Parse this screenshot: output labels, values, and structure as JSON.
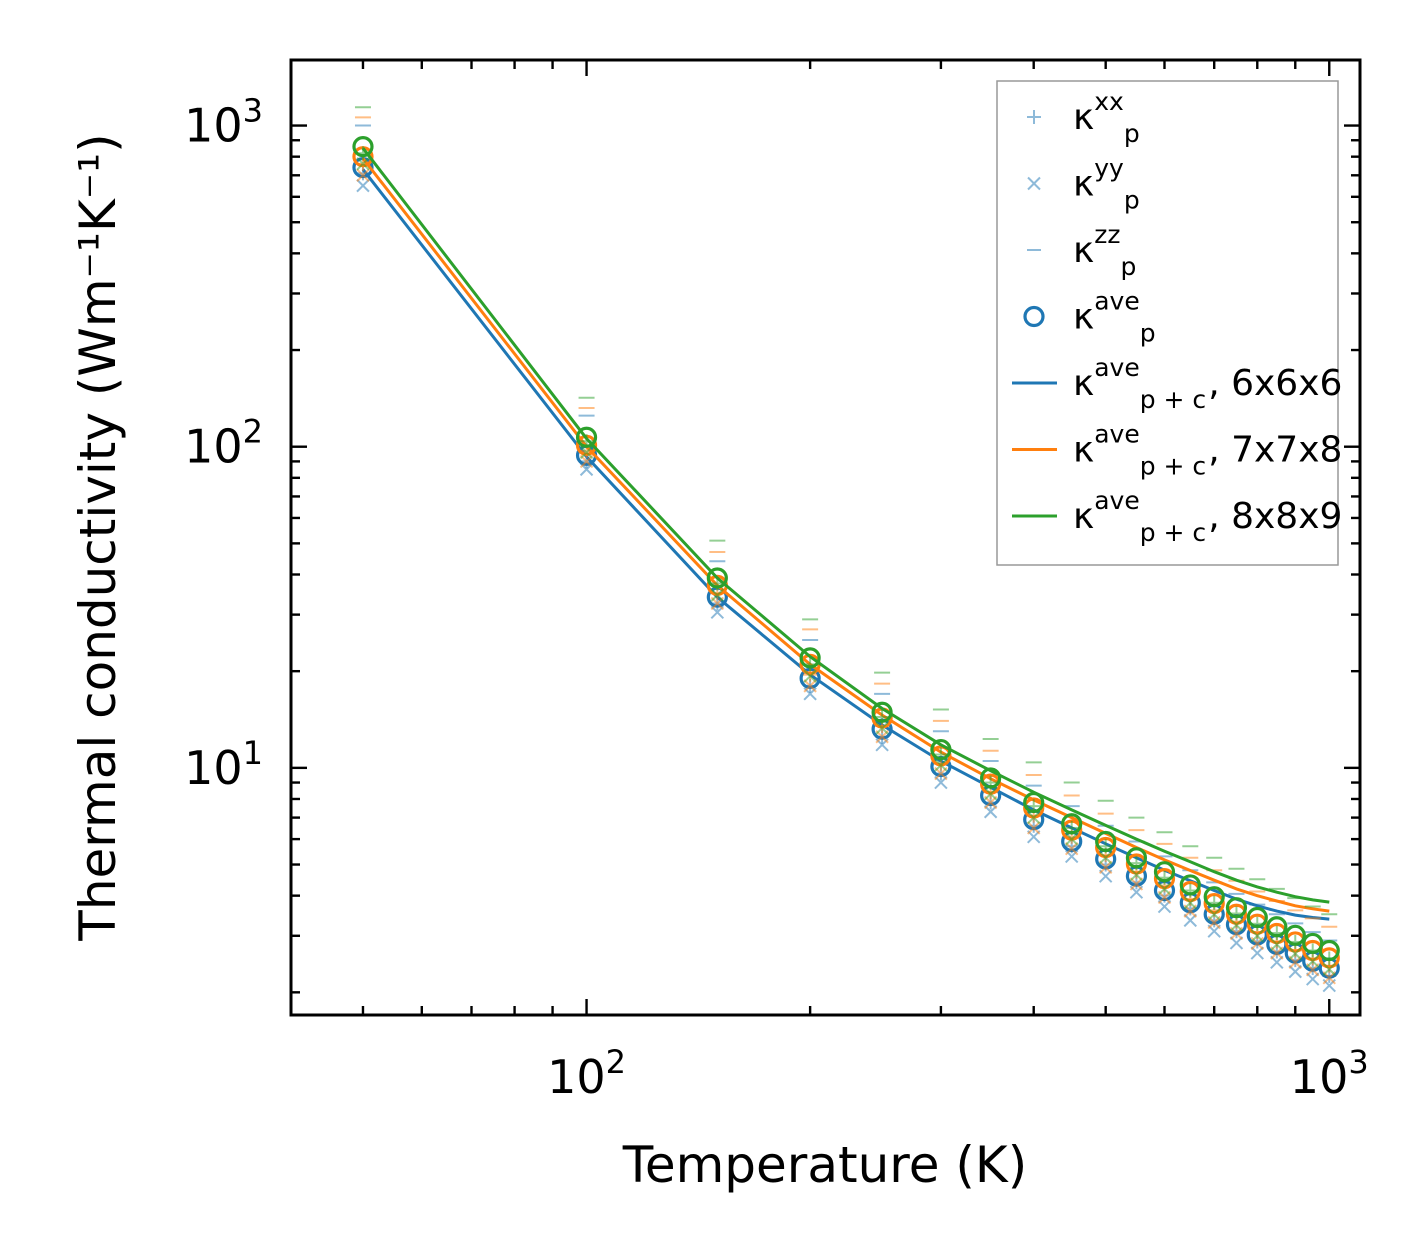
{
  "chart_data": {
    "type": "scatter",
    "title": "",
    "xlabel": "Temperature (K)",
    "ylabel": "Thermal conductivity (Wm⁻¹K⁻¹)",
    "xscale": "log",
    "yscale": "log",
    "xlim": [
      40,
      1100
    ],
    "ylim": [
      1.7,
      1600
    ],
    "x_ticks": [
      {
        "value": 100,
        "label": "10",
        "exp": "2"
      },
      {
        "value": 1000,
        "label": "10",
        "exp": "3"
      }
    ],
    "y_ticks": [
      {
        "value": 10,
        "label": "10",
        "exp": "1"
      },
      {
        "value": 100,
        "label": "10",
        "exp": "2"
      },
      {
        "value": 1000,
        "label": "10",
        "exp": "3"
      }
    ],
    "grid": false,
    "legend_position": "top-right",
    "x": [
      50,
      100,
      150,
      200,
      250,
      300,
      350,
      400,
      450,
      500,
      550,
      600,
      650,
      700,
      750,
      800,
      850,
      900,
      950,
      1000
    ],
    "colors": {
      "6x6x6": "#1f77b4",
      "7x7x8": "#ff7f0e",
      "8x8x9": "#2ca02c"
    },
    "legend": [
      {
        "base": "κ",
        "sub": "p",
        "sup": "xx",
        "tail": "",
        "marker": "plus"
      },
      {
        "base": "κ",
        "sub": "p",
        "sup": "yy",
        "tail": "",
        "marker": "x"
      },
      {
        "base": "κ",
        "sub": "p",
        "sup": "zz",
        "tail": "",
        "marker": "hline"
      },
      {
        "base": "κ",
        "sub": "p",
        "sup": "ave",
        "tail": "",
        "marker": "circle"
      },
      {
        "base": "κ",
        "sub": "p + c",
        "sup": "ave",
        "tail": ", 6x6x6",
        "marker": "line",
        "color": "#1f77b4"
      },
      {
        "base": "κ",
        "sub": "p + c",
        "sup": "ave",
        "tail": ", 7x7x8",
        "marker": "line",
        "color": "#ff7f0e"
      },
      {
        "base": "κ",
        "sub": "p + c",
        "sup": "ave",
        "tail": ", 8x8x9",
        "marker": "line",
        "color": "#2ca02c"
      }
    ],
    "series": [
      {
        "name": "6x6x6",
        "color": "#1f77b4",
        "kappa_p_xx": [
          710,
          90,
          32.5,
          18,
          12.5,
          9.6,
          7.8,
          6.6,
          5.7,
          5.0,
          4.4,
          4.0,
          3.65,
          3.35,
          3.1,
          2.88,
          2.68,
          2.52,
          2.38,
          2.25
        ],
        "kappa_p_yy": [
          650,
          85,
          30.5,
          17,
          11.8,
          9.0,
          7.3,
          6.1,
          5.3,
          4.6,
          4.1,
          3.7,
          3.35,
          3.1,
          2.85,
          2.65,
          2.48,
          2.32,
          2.2,
          2.1
        ],
        "kappa_p_zz": [
          1000,
          125,
          44,
          25,
          17,
          13,
          10.5,
          8.8,
          7.6,
          6.6,
          5.9,
          5.3,
          4.8,
          4.4,
          4.05,
          3.75,
          3.5,
          3.28,
          3.08,
          2.9
        ],
        "kappa_p_ave": [
          740,
          94,
          34,
          19,
          13.2,
          10.1,
          8.2,
          6.9,
          5.9,
          5.2,
          4.6,
          4.15,
          3.8,
          3.5,
          3.25,
          3.02,
          2.82,
          2.65,
          2.5,
          2.38
        ],
        "kappa_pc_ave": [
          730,
          93,
          34,
          19.5,
          13.6,
          10.5,
          8.7,
          7.4,
          6.5,
          5.8,
          5.25,
          4.8,
          4.45,
          4.15,
          3.9,
          3.72,
          3.58,
          3.48,
          3.42,
          3.38
        ]
      },
      {
        "name": "7x7x8",
        "color": "#ff7f0e",
        "kappa_p_xx": [
          760,
          97,
          35,
          19.5,
          13.5,
          10.3,
          8.4,
          7.1,
          6.1,
          5.35,
          4.75,
          4.3,
          3.9,
          3.6,
          3.32,
          3.08,
          2.88,
          2.7,
          2.55,
          2.42
        ],
        "kappa_p_yy": [
          700,
          90,
          32.5,
          18,
          12.5,
          9.6,
          7.8,
          6.5,
          5.6,
          4.9,
          4.35,
          3.95,
          3.58,
          3.3,
          3.05,
          2.84,
          2.65,
          2.48,
          2.35,
          2.22
        ],
        "kappa_p_zz": [
          1060,
          132,
          47,
          27,
          18.3,
          14,
          11.3,
          9.5,
          8.2,
          7.2,
          6.4,
          5.8,
          5.25,
          4.8,
          4.45,
          4.12,
          3.85,
          3.6,
          3.4,
          3.2
        ],
        "kappa_p_ave": [
          800,
          101,
          37,
          21,
          14.3,
          10.9,
          8.9,
          7.5,
          6.4,
          5.65,
          5.02,
          4.52,
          4.12,
          3.78,
          3.5,
          3.26,
          3.05,
          2.87,
          2.7,
          2.56
        ],
        "kappa_pc_ave": [
          790,
          100,
          37,
          21,
          14.6,
          11.2,
          9.25,
          7.95,
          7.0,
          6.25,
          5.65,
          5.17,
          4.79,
          4.47,
          4.2,
          4.0,
          3.85,
          3.72,
          3.64,
          3.58
        ]
      },
      {
        "name": "8x8x9",
        "color": "#2ca02c",
        "kappa_p_xx": [
          820,
          104,
          37.5,
          21,
          14.4,
          11,
          9,
          7.6,
          6.5,
          5.7,
          5.05,
          4.55,
          4.15,
          3.8,
          3.52,
          3.27,
          3.06,
          2.87,
          2.7,
          2.55
        ],
        "kappa_p_yy": [
          760,
          96,
          34.5,
          19.3,
          13.3,
          10.2,
          8.3,
          7.0,
          6.0,
          5.25,
          4.65,
          4.2,
          3.8,
          3.5,
          3.24,
          3.0,
          2.82,
          2.64,
          2.5,
          2.36
        ],
        "kappa_p_zz": [
          1140,
          142,
          51,
          29,
          19.8,
          15.2,
          12.3,
          10.4,
          9.0,
          7.9,
          7.0,
          6.3,
          5.7,
          5.25,
          4.85,
          4.5,
          4.2,
          3.93,
          3.7,
          3.5
        ],
        "kappa_p_ave": [
          860,
          107,
          39,
          22,
          14.9,
          11.4,
          9.3,
          7.8,
          6.7,
          5.9,
          5.25,
          4.75,
          4.32,
          3.97,
          3.67,
          3.42,
          3.2,
          3.01,
          2.84,
          2.7
        ],
        "kappa_pc_ave": [
          850,
          106,
          39,
          22.2,
          15.3,
          11.8,
          9.8,
          8.4,
          7.4,
          6.62,
          6.0,
          5.5,
          5.1,
          4.75,
          4.47,
          4.26,
          4.1,
          3.97,
          3.88,
          3.82
        ]
      }
    ]
  }
}
